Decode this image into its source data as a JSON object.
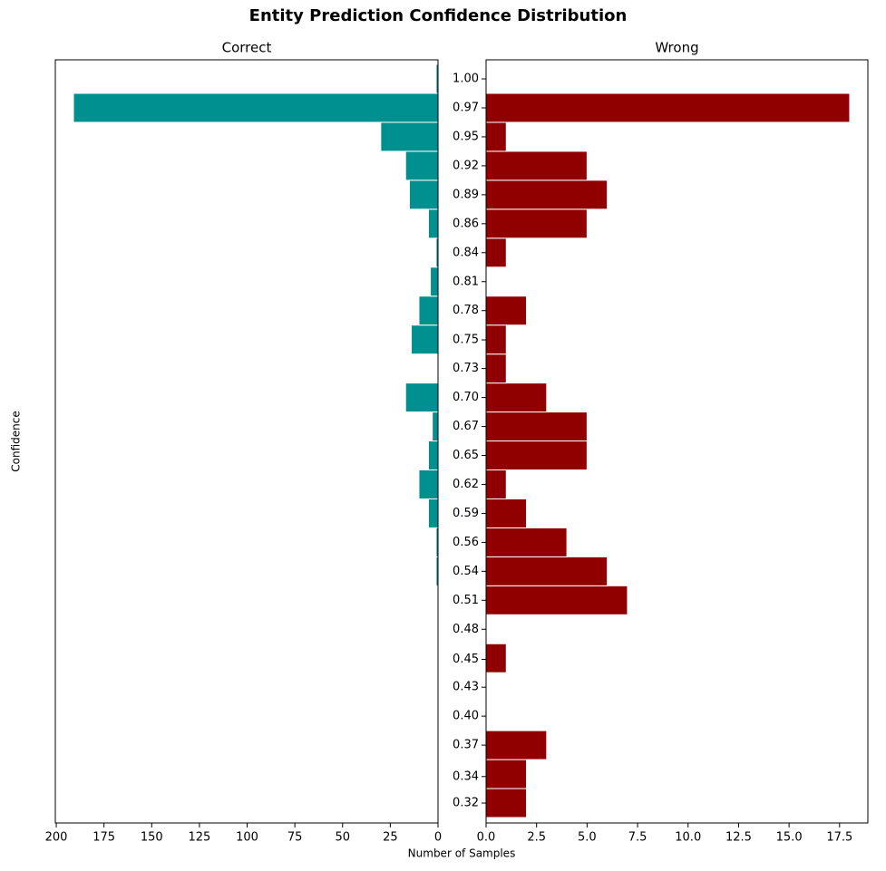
{
  "figure": {
    "title": "Entity Prediction Confidence Distribution",
    "xlabel": "Number of Samples",
    "ylabel": "Confidence"
  },
  "chart_data": [
    {
      "type": "histogram",
      "orientation": "horizontal",
      "title": "Correct",
      "color": "#009090",
      "edgecolor": "#ffffff",
      "bins": [
        0.3064,
        0.3336,
        0.3608,
        0.388,
        0.4152,
        0.4424,
        0.4696,
        0.4968,
        0.524,
        0.5512,
        0.5784,
        0.6056,
        0.6328,
        0.66,
        0.6872,
        0.7144,
        0.7416,
        0.7688,
        0.796,
        0.8232,
        0.8504,
        0.8776,
        0.9048,
        0.932,
        0.9592,
        0.9864,
        1.0136
      ],
      "values": [
        0,
        0,
        0,
        0,
        0,
        0,
        0,
        0,
        1,
        1,
        5,
        10,
        5,
        3,
        17,
        0,
        14,
        10,
        4,
        1,
        5,
        15,
        17,
        30,
        191,
        1
      ],
      "xlim": [
        0,
        200.5
      ],
      "x_inverted": true,
      "xticks": [
        200,
        175,
        150,
        125,
        100,
        75,
        50,
        25,
        0
      ],
      "ylim": [
        0.3013,
        1.0179
      ]
    },
    {
      "type": "histogram",
      "orientation": "horizontal",
      "title": "Wrong",
      "color": "#900000",
      "edgecolor": "#ffffff",
      "bins": [
        0.3064,
        0.3336,
        0.3608,
        0.388,
        0.4152,
        0.4424,
        0.4696,
        0.4968,
        0.524,
        0.5512,
        0.5784,
        0.6056,
        0.6328,
        0.66,
        0.6872,
        0.7144,
        0.7416,
        0.7688,
        0.796,
        0.8232,
        0.8504,
        0.8776,
        0.9048,
        0.932,
        0.9592,
        0.9864,
        1.0136
      ],
      "values": [
        2,
        2,
        3,
        0,
        0,
        1,
        0,
        7,
        6,
        4,
        2,
        1,
        5,
        5,
        3,
        1,
        1,
        2,
        0,
        1,
        5,
        6,
        5,
        1,
        18,
        0
      ],
      "xlim": [
        0,
        18.9
      ],
      "x_inverted": false,
      "xticks": [
        {
          "value": 0,
          "label": "0.0"
        },
        2.5,
        {
          "value": 5,
          "label": "5.0"
        },
        7.5,
        {
          "value": 10,
          "label": "10.0"
        },
        12.5,
        {
          "value": 15,
          "label": "15.0"
        },
        17.5
      ],
      "ylim": [
        0.3013,
        1.0179
      ],
      "yticks": [
        {
          "value": 1.0,
          "label": "1.00"
        },
        {
          "value": 0.9728,
          "label": "0.97"
        },
        {
          "value": 0.9456,
          "label": "0.95"
        },
        {
          "value": 0.9184,
          "label": "0.92"
        },
        {
          "value": 0.8912,
          "label": "0.89"
        },
        {
          "value": 0.864,
          "label": "0.86"
        },
        {
          "value": 0.8368,
          "label": "0.84"
        },
        {
          "value": 0.8096,
          "label": "0.81"
        },
        {
          "value": 0.7824,
          "label": "0.78"
        },
        {
          "value": 0.7549,
          "label": "0.75"
        },
        {
          "value": 0.728,
          "label": "0.73"
        },
        {
          "value": 0.7008,
          "label": "0.70"
        },
        {
          "value": 0.6736,
          "label": "0.67"
        },
        {
          "value": 0.6464,
          "label": "0.65"
        },
        {
          "value": 0.6192,
          "label": "0.62"
        },
        {
          "value": 0.592,
          "label": "0.59"
        },
        {
          "value": 0.5648,
          "label": "0.56"
        },
        {
          "value": 0.5376,
          "label": "0.54"
        },
        {
          "value": 0.5104,
          "label": "0.51"
        },
        {
          "value": 0.4832,
          "label": "0.48"
        },
        {
          "value": 0.4549,
          "label": "0.45"
        },
        {
          "value": 0.4288,
          "label": "0.43"
        },
        {
          "value": 0.4016,
          "label": "0.40"
        },
        {
          "value": 0.3744,
          "label": "0.37"
        },
        {
          "value": 0.3449,
          "label": "0.34"
        },
        {
          "value": 0.32,
          "label": "0.32"
        }
      ]
    }
  ]
}
